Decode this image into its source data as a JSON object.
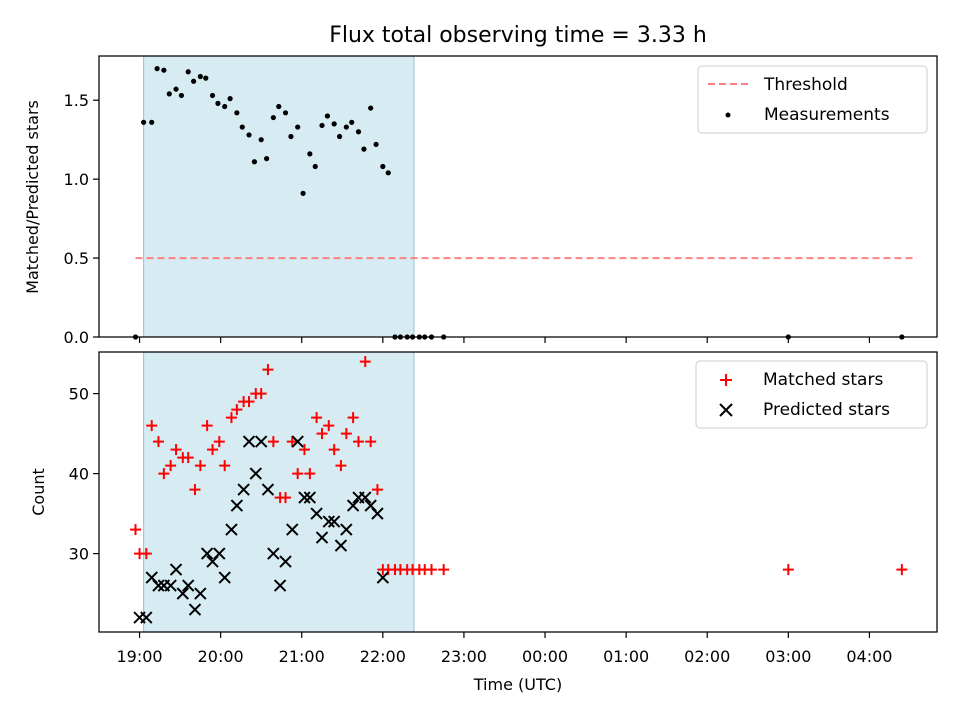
{
  "chart_data": [
    {
      "type": "scatter",
      "panel": "top",
      "title": "Flux total observing time = 3.33 h",
      "ylabel": "Matched/Predicted stars",
      "xlim": [
        "18:30",
        "04:50"
      ],
      "ylim": [
        0,
        1.78
      ],
      "yticks": [
        "0.0",
        "0.5",
        "1.0",
        "1.5"
      ],
      "highlight_span": {
        "start": "19:03",
        "end": "22:23",
        "color": "#add8e6"
      },
      "legend_position": "top-right",
      "legend": [
        {
          "label": "Threshold",
          "kind": "dashed-line",
          "color": "#ff8080"
        },
        {
          "label": "Measurements",
          "kind": "dot",
          "color": "#000000"
        }
      ],
      "threshold": {
        "y": 0.5,
        "x_start": "18:57",
        "x_end": "04:35"
      },
      "series": [
        {
          "name": "Measurements",
          "color": "#000000",
          "points": [
            [
              "18:57",
              0.0
            ],
            [
              "19:03",
              1.36
            ],
            [
              "19:09",
              1.36
            ],
            [
              "19:13",
              1.7
            ],
            [
              "19:18",
              1.69
            ],
            [
              "19:22",
              1.54
            ],
            [
              "19:27",
              1.57
            ],
            [
              "19:31",
              1.53
            ],
            [
              "19:36",
              1.68
            ],
            [
              "19:40",
              1.62
            ],
            [
              "19:45",
              1.65
            ],
            [
              "19:49",
              1.64
            ],
            [
              "19:54",
              1.53
            ],
            [
              "19:58",
              1.48
            ],
            [
              "20:03",
              1.46
            ],
            [
              "20:07",
              1.51
            ],
            [
              "20:12",
              1.42
            ],
            [
              "20:16",
              1.33
            ],
            [
              "20:21",
              1.28
            ],
            [
              "20:25",
              1.11
            ],
            [
              "20:30",
              1.25
            ],
            [
              "20:34",
              1.13
            ],
            [
              "20:39",
              1.39
            ],
            [
              "20:43",
              1.46
            ],
            [
              "20:48",
              1.42
            ],
            [
              "20:52",
              1.27
            ],
            [
              "20:57",
              1.33
            ],
            [
              "21:01",
              0.91
            ],
            [
              "21:06",
              1.16
            ],
            [
              "21:10",
              1.08
            ],
            [
              "21:15",
              1.34
            ],
            [
              "21:19",
              1.4
            ],
            [
              "21:24",
              1.35
            ],
            [
              "21:28",
              1.27
            ],
            [
              "21:33",
              1.33
            ],
            [
              "21:37",
              1.36
            ],
            [
              "21:42",
              1.3
            ],
            [
              "21:46",
              1.19
            ],
            [
              "21:51",
              1.45
            ],
            [
              "21:55",
              1.22
            ],
            [
              "22:00",
              1.08
            ],
            [
              "22:04",
              1.04
            ],
            [
              "22:09",
              0.0
            ],
            [
              "22:13",
              0.0
            ],
            [
              "22:18",
              0.0
            ],
            [
              "22:22",
              0.0
            ],
            [
              "22:27",
              0.0
            ],
            [
              "22:31",
              0.0
            ],
            [
              "22:36",
              0.0
            ],
            [
              "22:45",
              0.0
            ],
            [
              "03:00",
              0.0
            ],
            [
              "04:24",
              0.0
            ]
          ]
        }
      ]
    },
    {
      "type": "scatter",
      "panel": "bottom",
      "xlabel": "Time (UTC)",
      "ylabel": "Count",
      "xlim": [
        "18:30",
        "04:50"
      ],
      "ylim": [
        20.2,
        55.2
      ],
      "yticks": [
        "30",
        "40",
        "50"
      ],
      "xticks": [
        "19:00",
        "20:00",
        "21:00",
        "22:00",
        "23:00",
        "00:00",
        "01:00",
        "02:00",
        "03:00",
        "04:00"
      ],
      "highlight_span": {
        "start": "19:03",
        "end": "22:23",
        "color": "#add8e6"
      },
      "legend_position": "top-right",
      "legend": [
        {
          "label": "Matched stars",
          "kind": "plus",
          "color": "#ff0000"
        },
        {
          "label": "Predicted stars",
          "kind": "x",
          "color": "#000000"
        }
      ],
      "series": [
        {
          "name": "Matched stars",
          "marker": "plus",
          "color": "#ff0000",
          "points": [
            [
              "18:57",
              33
            ],
            [
              "19:00",
              30
            ],
            [
              "19:05",
              30
            ],
            [
              "19:09",
              46
            ],
            [
              "19:14",
              44
            ],
            [
              "19:18",
              40
            ],
            [
              "19:23",
              41
            ],
            [
              "19:27",
              43
            ],
            [
              "19:32",
              42
            ],
            [
              "19:36",
              42
            ],
            [
              "19:41",
              38
            ],
            [
              "19:45",
              41
            ],
            [
              "19:50",
              46
            ],
            [
              "19:54",
              43
            ],
            [
              "19:59",
              44
            ],
            [
              "20:03",
              41
            ],
            [
              "20:08",
              47
            ],
            [
              "20:12",
              48
            ],
            [
              "20:17",
              49
            ],
            [
              "20:21",
              49
            ],
            [
              "20:26",
              50
            ],
            [
              "20:30",
              50
            ],
            [
              "20:35",
              53
            ],
            [
              "20:39",
              44
            ],
            [
              "20:44",
              37
            ],
            [
              "20:48",
              37
            ],
            [
              "20:53",
              44
            ],
            [
              "20:57",
              40
            ],
            [
              "21:02",
              43
            ],
            [
              "21:06",
              40
            ],
            [
              "21:11",
              47
            ],
            [
              "21:15",
              45
            ],
            [
              "21:20",
              46
            ],
            [
              "21:24",
              43
            ],
            [
              "21:29",
              41
            ],
            [
              "21:33",
              45
            ],
            [
              "21:38",
              47
            ],
            [
              "21:42",
              44
            ],
            [
              "21:47",
              54
            ],
            [
              "21:51",
              44
            ],
            [
              "21:56",
              38
            ],
            [
              "22:00",
              28
            ],
            [
              "22:04",
              28
            ],
            [
              "22:09",
              28
            ],
            [
              "22:13",
              28
            ],
            [
              "22:18",
              28
            ],
            [
              "22:22",
              28
            ],
            [
              "22:27",
              28
            ],
            [
              "22:31",
              28
            ],
            [
              "22:36",
              28
            ],
            [
              "22:45",
              28
            ],
            [
              "03:00",
              28
            ],
            [
              "04:24",
              28
            ]
          ]
        },
        {
          "name": "Predicted stars",
          "marker": "x",
          "color": "#000000",
          "points": [
            [
              "19:00",
              22
            ],
            [
              "19:05",
              22
            ],
            [
              "19:09",
              27
            ],
            [
              "19:14",
              26
            ],
            [
              "19:18",
              26
            ],
            [
              "19:23",
              26
            ],
            [
              "19:27",
              28
            ],
            [
              "19:32",
              25
            ],
            [
              "19:36",
              26
            ],
            [
              "19:41",
              23
            ],
            [
              "19:45",
              25
            ],
            [
              "19:50",
              30
            ],
            [
              "19:54",
              29
            ],
            [
              "19:59",
              30
            ],
            [
              "20:03",
              27
            ],
            [
              "20:08",
              33
            ],
            [
              "20:12",
              36
            ],
            [
              "20:17",
              38
            ],
            [
              "20:21",
              44
            ],
            [
              "20:26",
              40
            ],
            [
              "20:30",
              44
            ],
            [
              "20:35",
              38
            ],
            [
              "20:39",
              30
            ],
            [
              "20:44",
              26
            ],
            [
              "20:48",
              29
            ],
            [
              "20:53",
              33
            ],
            [
              "20:57",
              44
            ],
            [
              "21:02",
              37
            ],
            [
              "21:06",
              37
            ],
            [
              "21:11",
              35
            ],
            [
              "21:15",
              32
            ],
            [
              "21:20",
              34
            ],
            [
              "21:24",
              34
            ],
            [
              "21:29",
              31
            ],
            [
              "21:33",
              33
            ],
            [
              "21:38",
              36
            ],
            [
              "21:42",
              37
            ],
            [
              "21:47",
              37
            ],
            [
              "21:51",
              36
            ],
            [
              "21:56",
              35
            ],
            [
              "22:00",
              27
            ]
          ]
        }
      ]
    }
  ]
}
